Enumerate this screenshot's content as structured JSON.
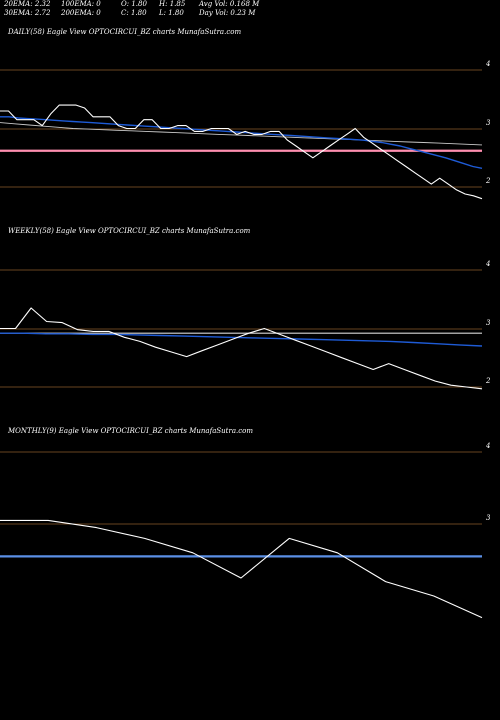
{
  "header": {
    "row1": [
      {
        "label": "20EMA: 2.32"
      },
      {
        "label": "100EMA: 0"
      },
      {
        "label": "O: 1.80"
      },
      {
        "label": "H: 1.85"
      },
      {
        "label": "Avg Vol: 0.168  M"
      }
    ],
    "row2": [
      {
        "label": "30EMA: 2.72"
      },
      {
        "label": "200EMA: 0"
      },
      {
        "label": "C: 1.80"
      },
      {
        "label": "L: 1.80"
      },
      {
        "label": "Day Vol: 0.23  M"
      }
    ]
  },
  "colors": {
    "background": "#000000",
    "grid": "#8b5a2b",
    "price": "#ffffff",
    "ema_fast": "#1e5bd6",
    "ema_slow": "#c8c8c8",
    "pink_level": "#ff8fb0",
    "monthly_level": "#5b8fe6"
  },
  "chart_data": [
    {
      "type": "line",
      "title": "DAILY(58) Eagle  View  OPTOCIRCUI_BZ charts MunafaSutra.com",
      "y_ticks": [
        "4",
        "3",
        "2"
      ],
      "ylim": [
        1.75,
        4.2
      ],
      "horizontal_levels": [
        {
          "name": "pink",
          "value": 2.62
        }
      ],
      "series": [
        {
          "key": "price",
          "values": [
            3.3,
            3.3,
            3.15,
            3.15,
            3.15,
            3.05,
            3.25,
            3.4,
            3.4,
            3.4,
            3.35,
            3.2,
            3.2,
            3.2,
            3.05,
            3.0,
            3.0,
            3.15,
            3.15,
            3.0,
            3.0,
            3.05,
            3.05,
            2.95,
            2.95,
            3.0,
            3.0,
            3.0,
            2.9,
            2.95,
            2.9,
            2.9,
            2.95,
            2.95,
            2.8,
            2.7,
            2.6,
            2.5,
            2.6,
            2.7,
            2.8,
            2.9,
            3.0,
            2.85,
            2.75,
            2.65,
            2.55,
            2.45,
            2.35,
            2.25,
            2.15,
            2.05,
            2.15,
            2.05,
            1.95,
            1.88,
            1.85,
            1.8
          ]
        },
        {
          "key": "ema_fast",
          "values": [
            3.2,
            3.2,
            3.18,
            3.17,
            3.16,
            3.15,
            3.14,
            3.13,
            3.12,
            3.11,
            3.1,
            3.09,
            3.08,
            3.07,
            3.06,
            3.05,
            3.04,
            3.03,
            3.02,
            3.01,
            3.0,
            2.99,
            2.98,
            2.97,
            2.96,
            2.95,
            2.94,
            2.93,
            2.92,
            2.91,
            2.9,
            2.89,
            2.88,
            2.87,
            2.86,
            2.85,
            2.84,
            2.83,
            2.82,
            2.81,
            2.8,
            2.78,
            2.76,
            2.73,
            2.7,
            2.66,
            2.62,
            2.58,
            2.54,
            2.5,
            2.45,
            2.4,
            2.35,
            2.32
          ]
        },
        {
          "key": "ema_slow",
          "values": [
            3.1,
            3.08,
            3.06,
            3.04,
            3.02,
            3.0,
            2.99,
            2.98,
            2.97,
            2.96,
            2.95,
            2.94,
            2.93,
            2.92,
            2.91,
            2.9,
            2.89,
            2.88,
            2.87,
            2.86,
            2.85,
            2.84,
            2.83,
            2.82,
            2.81,
            2.8,
            2.79,
            2.78,
            2.77,
            2.76,
            2.75,
            2.74,
            2.73,
            2.72
          ]
        }
      ]
    },
    {
      "type": "line",
      "title": "WEEKLY(58) Eagle  View  OPTOCIRCUI_BZ charts MunafaSutra.com",
      "y_ticks": [
        "4",
        "3",
        "2"
      ],
      "ylim": [
        1.75,
        4.2
      ],
      "horizontal_levels": [
        {
          "name": "grey",
          "value": 2.92
        }
      ],
      "series": [
        {
          "key": "price",
          "values": [
            3.0,
            3.0,
            3.35,
            3.12,
            3.1,
            2.98,
            2.95,
            2.95,
            2.85,
            2.78,
            2.68,
            2.6,
            2.52,
            2.62,
            2.72,
            2.82,
            2.92,
            3.0,
            2.9,
            2.8,
            2.7,
            2.6,
            2.5,
            2.4,
            2.3,
            2.4,
            2.3,
            2.2,
            2.1,
            2.03,
            2.0,
            1.97
          ]
        },
        {
          "key": "ema_fast",
          "values": [
            2.92,
            2.92,
            2.91,
            2.91,
            2.9,
            2.9,
            2.89,
            2.88,
            2.87,
            2.86,
            2.85,
            2.84,
            2.83,
            2.82,
            2.81,
            2.8,
            2.79,
            2.78,
            2.76,
            2.74,
            2.72,
            2.7
          ]
        }
      ]
    },
    {
      "type": "line",
      "title": "MONTHLY(9) Eagle  View  OPTOCIRCUI_BZ charts MunafaSutra.com",
      "y_ticks": [
        "4",
        "3"
      ],
      "ylim": [
        1.4,
        4.7
      ],
      "horizontal_levels": [
        {
          "name": "blue",
          "value": 2.55
        }
      ],
      "series": [
        {
          "key": "price",
          "values": [
            3.05,
            3.05,
            2.95,
            2.8,
            2.6,
            2.25,
            2.8,
            2.6,
            2.2,
            2.0,
            1.7
          ]
        }
      ]
    }
  ]
}
